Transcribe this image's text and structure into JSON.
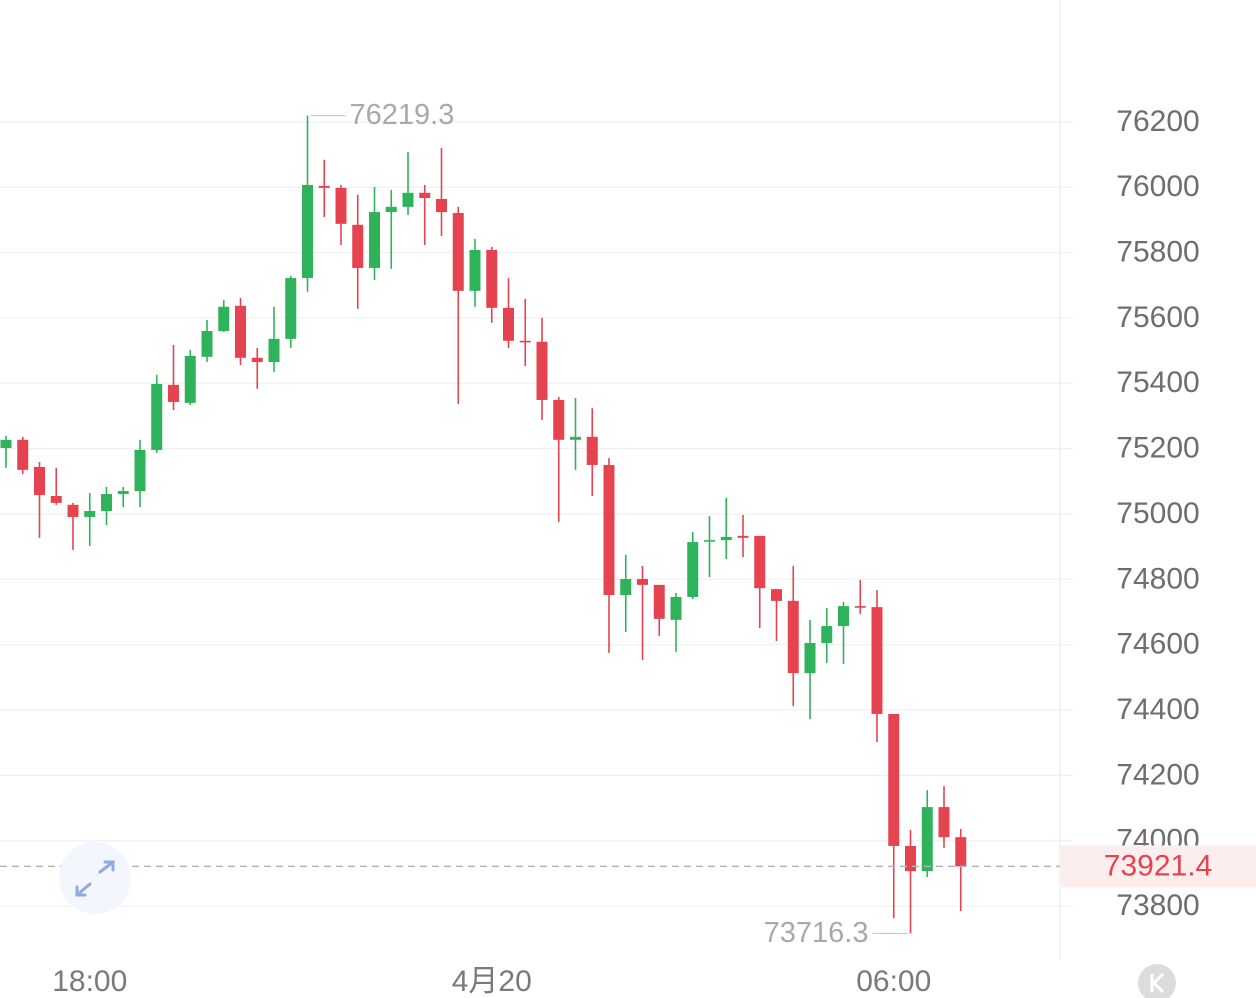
{
  "chart_data": {
    "type": "candlestick",
    "categories": [
      null,
      null,
      null,
      null,
      null,
      "18:00",
      null,
      null,
      null,
      null,
      null,
      null,
      null,
      null,
      null,
      null,
      null,
      null,
      null,
      null,
      null,
      null,
      null,
      null,
      null,
      null,
      null,
      null,
      null,
      "4月20",
      null,
      null,
      null,
      null,
      null,
      null,
      null,
      null,
      null,
      null,
      null,
      null,
      null,
      null,
      null,
      null,
      null,
      null,
      null,
      null,
      null,
      null,
      null,
      "06:00",
      null,
      null,
      null,
      null
    ],
    "open": [
      75202,
      75227,
      75144,
      75055,
      75028,
      74991,
      75009,
      75061,
      75070,
      75196,
      75395,
      75340,
      75481,
      75560,
      75637,
      75478,
      75465,
      75536,
      75722,
      76004,
      75998,
      75885,
      75753,
      75924,
      75940,
      75983,
      75964,
      75921,
      75683,
      75808,
      75631,
      75530,
      75527,
      75349,
      75227,
      75236,
      75150,
      74752,
      74801,
      74783,
      74676,
      74746,
      74917,
      74920,
      74933,
      74933,
      74770,
      74734,
      74513,
      74605,
      74657,
      74718,
      74715,
      74388,
      73984,
      73907,
      74103,
      74011
    ],
    "high": [
      75239,
      75236,
      75159,
      75141,
      75034,
      75064,
      75083,
      75083,
      75227,
      75426,
      75517,
      75502,
      75594,
      75655,
      75661,
      75508,
      75634,
      75729,
      76219.3,
      76084,
      76007,
      75977,
      76001,
      75992,
      76108,
      76007,
      76120,
      75940,
      75842,
      75817,
      75722,
      75658,
      75600,
      75358,
      75355,
      75324,
      75171,
      74875,
      74841,
      74783,
      74758,
      74945,
      74994,
      75049,
      74997,
      74933,
      74770,
      74841,
      74676,
      74712,
      74731,
      74798,
      74767,
      74388,
      74033,
      74155,
      74167,
      74036
    ],
    "low": [
      75141,
      75122,
      74927,
      75028,
      74890,
      74902,
      74966,
      75021,
      75021,
      75187,
      75318,
      75334,
      75465,
      75557,
      75456,
      75383,
      75435,
      75508,
      75680,
      75909,
      75823,
      75628,
      75716,
      75750,
      75915,
      75823,
      75851,
      75337,
      75634,
      75585,
      75508,
      75453,
      75288,
      74976,
      75135,
      75055,
      74575,
      74639,
      74553,
      74627,
      74578,
      74740,
      74807,
      74862,
      74868,
      74651,
      74611,
      74412,
      74372,
      74544,
      74541,
      74694,
      74302,
      73763,
      73716.3,
      73889,
      73978,
      73785
    ],
    "close": [
      75227,
      75135,
      75058,
      75034,
      74991,
      75009,
      75061,
      75070,
      75196,
      75398,
      75343,
      75484,
      75560,
      75634,
      75478,
      75465,
      75536,
      75722,
      76007,
      75998,
      75888,
      75753,
      75924,
      75940,
      75983,
      75967,
      75924,
      75683,
      75808,
      75631,
      75530,
      75527,
      75349,
      75227,
      75236,
      75150,
      74752,
      74801,
      74783,
      74679,
      74746,
      74914,
      74920,
      74930,
      74927,
      74773,
      74734,
      74513,
      74605,
      74657,
      74718,
      74715,
      74388,
      73984,
      73907,
      74103,
      74011,
      73921.4
    ],
    "up_color": "#2fb35a",
    "down_color": "#e5434f",
    "ylim": [
      73635,
      76573
    ],
    "yticks": [
      73800,
      74000,
      74200,
      74400,
      74600,
      74800,
      75000,
      75200,
      75400,
      75600,
      75800,
      76000,
      76200
    ],
    "grid": true
  }
}
